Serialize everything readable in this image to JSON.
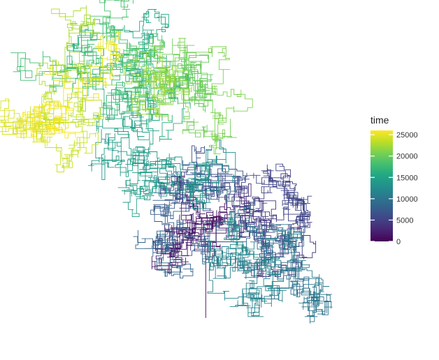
{
  "chart_data": {
    "type": "line",
    "description_kind": "random-walk path colored by time",
    "color_scale": "viridis",
    "legend": {
      "title": "time",
      "placement": "right",
      "ticks": [
        0,
        5000,
        10000,
        15000,
        20000,
        25000
      ],
      "tick_labels": [
        "0",
        "5000",
        "10000",
        "15000",
        "20000",
        "25000"
      ],
      "range": [
        0,
        26000
      ]
    },
    "axes": {
      "show": false,
      "grid": false
    },
    "series": [
      {
        "values_note": "approximate path waypoints (data units) with time",
        "points": [
          {
            "t": 0,
            "x": 0,
            "y": 0
          },
          {
            "t": 300,
            "x": 0,
            "y": 95
          },
          {
            "t": 1200,
            "x": -40,
            "y": 115
          },
          {
            "t": 2200,
            "x": -10,
            "y": 140
          },
          {
            "t": 3000,
            "x": 40,
            "y": 165
          },
          {
            "t": 3800,
            "x": 70,
            "y": 145
          },
          {
            "t": 4600,
            "x": 90,
            "y": 170
          },
          {
            "t": 5200,
            "x": 110,
            "y": 200
          },
          {
            "t": 5800,
            "x": 60,
            "y": 215
          },
          {
            "t": 6500,
            "x": 0,
            "y": 205
          },
          {
            "t": 7200,
            "x": -60,
            "y": 170
          },
          {
            "t": 8000,
            "x": -50,
            "y": 110
          },
          {
            "t": 8600,
            "x": 0,
            "y": 80
          },
          {
            "t": 9200,
            "x": 60,
            "y": 60
          },
          {
            "t": 9800,
            "x": 120,
            "y": 70
          },
          {
            "t": 10400,
            "x": 140,
            "y": 40
          },
          {
            "t": 11000,
            "x": 90,
            "y": 25
          },
          {
            "t": 11600,
            "x": 80,
            "y": 80
          },
          {
            "t": 12200,
            "x": 20,
            "y": 140
          },
          {
            "t": 12800,
            "x": -20,
            "y": 190
          },
          {
            "t": 13400,
            "x": 20,
            "y": 200
          },
          {
            "t": 14000,
            "x": -40,
            "y": 210
          },
          {
            "t": 14600,
            "x": -90,
            "y": 245
          },
          {
            "t": 15200,
            "x": -80,
            "y": 290
          },
          {
            "t": 15800,
            "x": -30,
            "y": 310
          },
          {
            "t": 16400,
            "x": -80,
            "y": 330
          },
          {
            "t": 17000,
            "x": -150,
            "y": 310
          },
          {
            "t": 17600,
            "x": -170,
            "y": 340
          },
          {
            "t": 18200,
            "x": -100,
            "y": 385
          },
          {
            "t": 18800,
            "x": -60,
            "y": 400
          },
          {
            "t": 19400,
            "x": -20,
            "y": 380
          },
          {
            "t": 20000,
            "x": 10,
            "y": 340
          },
          {
            "t": 20600,
            "x": 20,
            "y": 295
          },
          {
            "t": 21200,
            "x": -30,
            "y": 305
          },
          {
            "t": 21800,
            "x": -110,
            "y": 320
          },
          {
            "t": 22400,
            "x": -140,
            "y": 345
          },
          {
            "t": 23000,
            "x": -190,
            "y": 340
          },
          {
            "t": 23600,
            "x": -215,
            "y": 310
          },
          {
            "t": 24200,
            "x": -250,
            "y": 300
          },
          {
            "t": 24800,
            "x": -220,
            "y": 285
          },
          {
            "t": 25400,
            "x": -240,
            "y": 315
          },
          {
            "t": 26000,
            "x": -225,
            "y": 305
          }
        ]
      }
    ],
    "xlim": [
      -270,
      200
    ],
    "ylim": [
      -20,
      440
    ]
  }
}
